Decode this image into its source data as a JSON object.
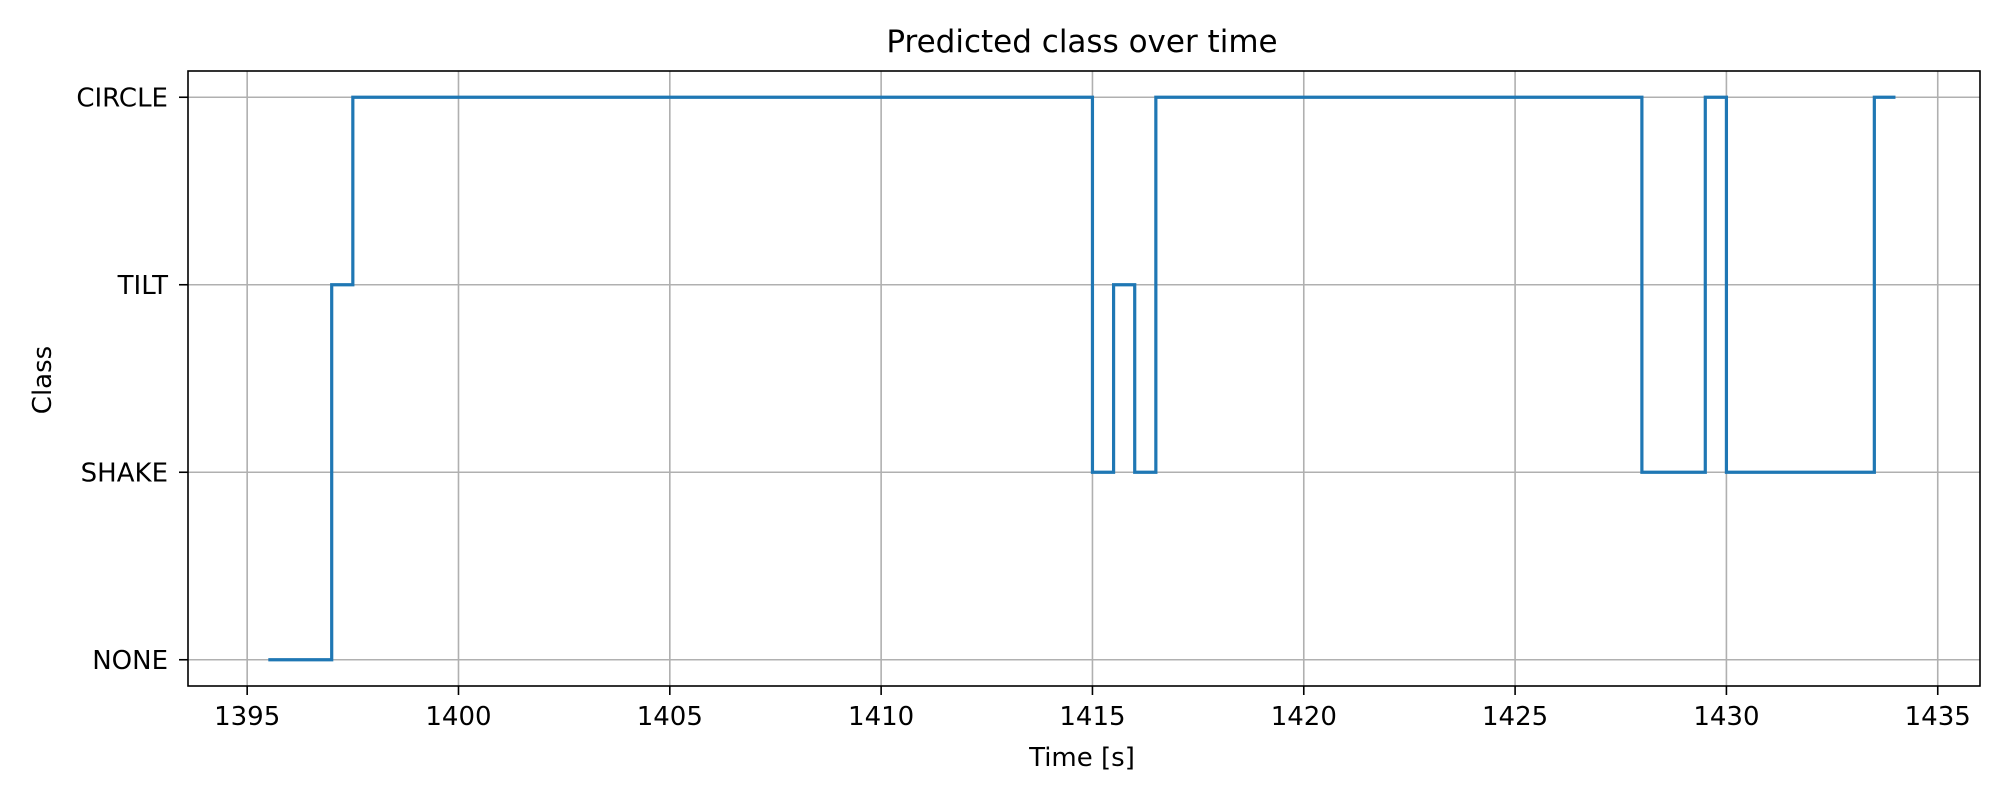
{
  "chart_data": {
    "type": "line",
    "step": "post",
    "title": "Predicted class over time",
    "xlabel": "Time [s]",
    "ylabel": "Class",
    "xlim": [
      1393.6,
      1436.0
    ],
    "ylim": [
      -0.14,
      3.14
    ],
    "x_ticks": [
      1395,
      1400,
      1405,
      1410,
      1415,
      1420,
      1425,
      1430,
      1435
    ],
    "y_tick_labels": [
      "NONE",
      "SHAKE",
      "TILT",
      "CIRCLE"
    ],
    "grid": true,
    "series": [
      {
        "color": "#1f77b4",
        "x": [
          1395.5,
          1397.0,
          1397.5,
          1415.0,
          1415.5,
          1416.0,
          1416.5,
          1428.0,
          1429.5,
          1430.0,
          1433.5,
          1434.0
        ],
        "y": [
          "NONE",
          "TILT",
          "CIRCLE",
          "SHAKE",
          "TILT",
          "SHAKE",
          "CIRCLE",
          "SHAKE",
          "CIRCLE",
          "SHAKE",
          "CIRCLE",
          "CIRCLE"
        ]
      }
    ]
  }
}
